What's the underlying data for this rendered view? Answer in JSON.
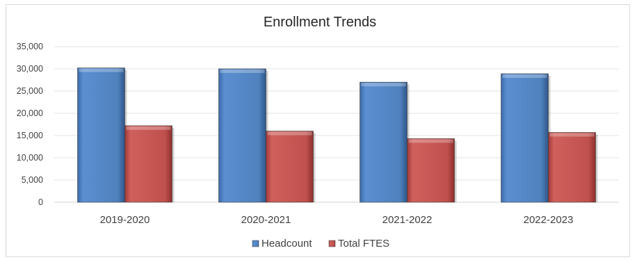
{
  "chart_data": {
    "type": "bar",
    "title": "Enrollment Trends",
    "xlabel": "",
    "ylabel": "",
    "categories": [
      "2019-2020",
      "2020-2021",
      "2021-2022",
      "2022-2023"
    ],
    "series": [
      {
        "name": "Headcount",
        "values": [
          30200,
          30000,
          27000,
          28900
        ],
        "color": "#4f81bd"
      },
      {
        "name": "Total FTES",
        "values": [
          17200,
          16000,
          14300,
          15700
        ],
        "color": "#c0504d"
      }
    ],
    "ylim": [
      0,
      35000
    ],
    "yticks": [
      0,
      5000,
      10000,
      15000,
      20000,
      25000,
      30000,
      35000
    ],
    "ytick_labels": [
      "0",
      "5,000",
      "10,000",
      "15,000",
      "20,000",
      "25,000",
      "30,000",
      "35,000"
    ],
    "grid": true,
    "legend_position": "bottom"
  }
}
